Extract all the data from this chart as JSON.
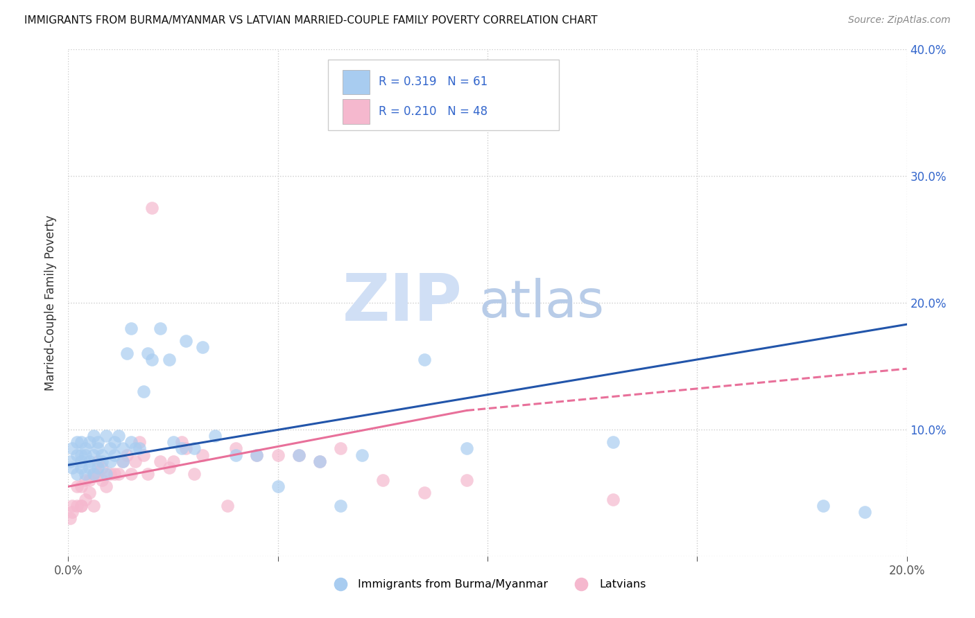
{
  "title": "IMMIGRANTS FROM BURMA/MYANMAR VS LATVIAN MARRIED-COUPLE FAMILY POVERTY CORRELATION CHART",
  "source": "Source: ZipAtlas.com",
  "ylabel": "Married-Couple Family Poverty",
  "xlim": [
    0.0,
    0.2
  ],
  "ylim": [
    0.0,
    0.4
  ],
  "xticks": [
    0.0,
    0.05,
    0.1,
    0.15,
    0.2
  ],
  "xticklabels": [
    "0.0%",
    "",
    "",
    "",
    "20.0%"
  ],
  "yticks_right": [
    0.0,
    0.1,
    0.2,
    0.3,
    0.4
  ],
  "yticklabels_right": [
    "",
    "10.0%",
    "20.0%",
    "30.0%",
    "40.0%"
  ],
  "blue_color": "#A8CCF0",
  "pink_color": "#F5B8CE",
  "trend_blue": "#2255AA",
  "trend_pink": "#E8709A",
  "watermark_zip": "ZIP",
  "watermark_atlas": "atlas",
  "blue_scatter_x": [
    0.0005,
    0.001,
    0.001,
    0.002,
    0.002,
    0.002,
    0.003,
    0.003,
    0.003,
    0.003,
    0.004,
    0.004,
    0.004,
    0.005,
    0.005,
    0.005,
    0.006,
    0.006,
    0.006,
    0.007,
    0.007,
    0.007,
    0.008,
    0.008,
    0.009,
    0.009,
    0.01,
    0.01,
    0.011,
    0.011,
    0.012,
    0.013,
    0.013,
    0.014,
    0.015,
    0.015,
    0.016,
    0.017,
    0.018,
    0.019,
    0.02,
    0.022,
    0.024,
    0.025,
    0.027,
    0.028,
    0.03,
    0.032,
    0.035,
    0.04,
    0.045,
    0.05,
    0.055,
    0.06,
    0.065,
    0.07,
    0.085,
    0.095,
    0.13,
    0.18,
    0.19
  ],
  "blue_scatter_y": [
    0.075,
    0.085,
    0.07,
    0.08,
    0.09,
    0.065,
    0.07,
    0.08,
    0.09,
    0.075,
    0.08,
    0.065,
    0.085,
    0.07,
    0.09,
    0.075,
    0.08,
    0.065,
    0.095,
    0.07,
    0.085,
    0.09,
    0.075,
    0.08,
    0.065,
    0.095,
    0.085,
    0.075,
    0.09,
    0.08,
    0.095,
    0.085,
    0.075,
    0.16,
    0.09,
    0.18,
    0.085,
    0.085,
    0.13,
    0.16,
    0.155,
    0.18,
    0.155,
    0.09,
    0.085,
    0.17,
    0.085,
    0.165,
    0.095,
    0.08,
    0.08,
    0.055,
    0.08,
    0.075,
    0.04,
    0.08,
    0.155,
    0.085,
    0.09,
    0.04,
    0.035
  ],
  "pink_scatter_x": [
    0.0005,
    0.001,
    0.001,
    0.002,
    0.002,
    0.003,
    0.003,
    0.003,
    0.004,
    0.004,
    0.005,
    0.005,
    0.006,
    0.006,
    0.007,
    0.007,
    0.008,
    0.008,
    0.009,
    0.01,
    0.011,
    0.012,
    0.013,
    0.014,
    0.015,
    0.016,
    0.017,
    0.018,
    0.019,
    0.02,
    0.022,
    0.024,
    0.025,
    0.027,
    0.028,
    0.03,
    0.032,
    0.038,
    0.04,
    0.045,
    0.05,
    0.055,
    0.06,
    0.065,
    0.075,
    0.085,
    0.095,
    0.13
  ],
  "pink_scatter_y": [
    0.03,
    0.04,
    0.035,
    0.04,
    0.055,
    0.04,
    0.055,
    0.04,
    0.06,
    0.045,
    0.05,
    0.06,
    0.065,
    0.04,
    0.065,
    0.075,
    0.07,
    0.06,
    0.055,
    0.065,
    0.065,
    0.065,
    0.075,
    0.08,
    0.065,
    0.075,
    0.09,
    0.08,
    0.065,
    0.275,
    0.075,
    0.07,
    0.075,
    0.09,
    0.085,
    0.065,
    0.08,
    0.04,
    0.085,
    0.08,
    0.08,
    0.08,
    0.075,
    0.085,
    0.06,
    0.05,
    0.06,
    0.045
  ],
  "blue_trend_x0": 0.0,
  "blue_trend_y0": 0.072,
  "blue_trend_x1": 0.2,
  "blue_trend_y1": 0.183,
  "pink_trend_x0": 0.0,
  "pink_trend_y0": 0.055,
  "pink_trend_x1_solid": 0.095,
  "pink_trend_y1_solid": 0.115,
  "pink_trend_x1_dash": 0.2,
  "pink_trend_y1_dash": 0.148
}
